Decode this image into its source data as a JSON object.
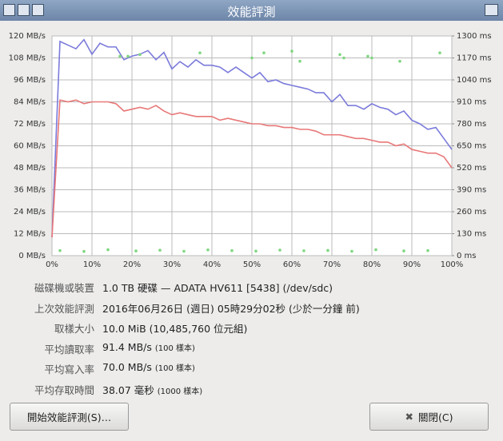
{
  "window": {
    "title": "效能評測"
  },
  "chart_data": {
    "type": "line",
    "xlim": [
      0,
      100
    ],
    "xticks": [
      {
        "value": 0,
        "label": "0%"
      },
      {
        "value": 10,
        "label": "10%"
      },
      {
        "value": 20,
        "label": "20%"
      },
      {
        "value": 30,
        "label": "30%"
      },
      {
        "value": 40,
        "label": "40%"
      },
      {
        "value": 50,
        "label": "50%"
      },
      {
        "value": 60,
        "label": "60%"
      },
      {
        "value": 70,
        "label": "70%"
      },
      {
        "value": 80,
        "label": "80%"
      },
      {
        "value": 90,
        "label": "90%"
      },
      {
        "value": 100,
        "label": "100%"
      }
    ],
    "ylim": [
      0,
      120
    ],
    "yticks": [
      {
        "value": 0,
        "label": "0 MB/s"
      },
      {
        "value": 12,
        "label": "12 MB/s"
      },
      {
        "value": 24,
        "label": "24 MB/s"
      },
      {
        "value": 36,
        "label": "36 MB/s"
      },
      {
        "value": 48,
        "label": "48 MB/s"
      },
      {
        "value": 60,
        "label": "60 MB/s"
      },
      {
        "value": 72,
        "label": "72 MB/s"
      },
      {
        "value": 84,
        "label": "84 MB/s"
      },
      {
        "value": 96,
        "label": "96 MB/s"
      },
      {
        "value": 108,
        "label": "108 MB/s"
      },
      {
        "value": 120,
        "label": "120 MB/s"
      }
    ],
    "y2lim": [
      0,
      1300
    ],
    "y2ticks": [
      {
        "value": 0,
        "label": "0 ms"
      },
      {
        "value": 130,
        "label": "130 ms"
      },
      {
        "value": 260,
        "label": "260 ms"
      },
      {
        "value": 390,
        "label": "390 ms"
      },
      {
        "value": 520,
        "label": "520 ms"
      },
      {
        "value": 650,
        "label": "650 ms"
      },
      {
        "value": 780,
        "label": "780 ms"
      },
      {
        "value": 910,
        "label": "910 ms"
      },
      {
        "value": 1040,
        "label": "1040 ms"
      },
      {
        "value": 1170,
        "label": "1170 ms"
      },
      {
        "value": 1300,
        "label": "1300 ms"
      }
    ],
    "grid": true,
    "x": [
      0,
      2,
      4,
      6,
      8,
      10,
      12,
      14,
      16,
      18,
      20,
      22,
      24,
      26,
      28,
      30,
      32,
      34,
      36,
      38,
      40,
      42,
      44,
      46,
      48,
      50,
      52,
      54,
      56,
      58,
      60,
      62,
      64,
      66,
      68,
      70,
      72,
      74,
      76,
      78,
      80,
      82,
      84,
      86,
      88,
      90,
      92,
      94,
      96,
      98,
      100
    ],
    "series": [
      {
        "color": "#7b7bdb",
        "values": [
          10,
          117,
          115,
          113,
          118,
          110,
          116,
          114,
          114,
          107,
          109,
          110,
          112,
          107,
          111,
          102,
          106,
          103,
          107,
          104,
          104,
          103,
          100,
          103,
          100,
          97,
          100,
          95,
          96,
          94,
          93,
          92,
          91,
          89,
          89,
          84,
          88,
          82,
          82,
          80,
          83,
          81,
          80,
          77,
          79,
          74,
          72,
          69,
          70,
          64,
          58
        ]
      },
      {
        "color": "#e87878",
        "values": [
          10,
          85,
          84,
          85,
          83,
          84,
          84,
          84,
          83,
          79,
          80,
          81,
          80,
          82,
          79,
          77,
          78,
          77,
          76,
          76,
          76,
          74,
          75,
          74,
          73,
          72,
          72,
          71,
          71,
          70,
          70,
          69,
          69,
          68,
          66,
          66,
          66,
          65,
          64,
          64,
          63,
          62,
          62,
          60,
          61,
          58,
          57,
          56,
          56,
          54,
          48
        ]
      },
      {
        "type": "scatter",
        "axis": "y2",
        "color": "#7ed67e",
        "x": [
          17,
          19,
          22,
          37,
          50,
          53,
          60,
          62,
          72,
          73,
          79,
          80,
          87,
          97,
          2,
          8,
          14,
          21,
          27,
          33,
          39,
          45,
          51,
          57,
          63,
          69,
          75,
          81,
          88,
          94
        ],
        "values": [
          1180,
          1180,
          1190,
          1200,
          1170,
          1200,
          1210,
          1150,
          1190,
          1170,
          1180,
          1170,
          1150,
          1200,
          30,
          25,
          35,
          28,
          32,
          26,
          34,
          30,
          27,
          33,
          29,
          31,
          26,
          35,
          28,
          30
        ]
      }
    ]
  },
  "info": {
    "rows": [
      {
        "label": "磁碟機或裝置",
        "value": "1.0 TB 硬碟 — ADATA HV611 [5438] (/dev/sdc)"
      },
      {
        "label": "上次效能評測",
        "value": "2016年06月26日 (週日) 05時29分02秒 (少於一分鐘 前)"
      },
      {
        "label": "取樣大小",
        "value": "10.0 MiB (10,485,760 位元組)"
      },
      {
        "label": "平均讀取率",
        "value": "91.4 MB/s",
        "note": "(100 樣本)"
      },
      {
        "label": "平均寫入率",
        "value": "70.0 MB/s",
        "note": "(100 樣本)"
      },
      {
        "label": "平均存取時間",
        "value": "38.07 毫秒",
        "note": "(1000 樣本)"
      }
    ]
  },
  "buttons": {
    "start": "開始效能評測(S)…",
    "close": "關閉(C)"
  }
}
